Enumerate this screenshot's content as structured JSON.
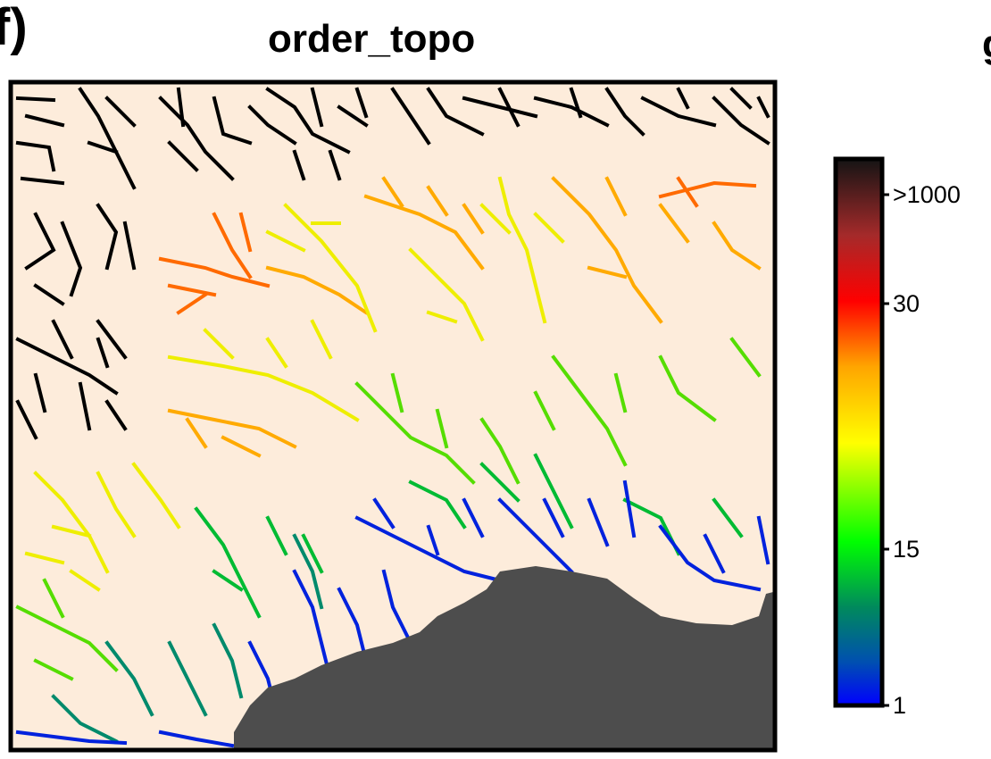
{
  "figure": {
    "panel_label": "f)",
    "next_panel_label": "g",
    "title": "order_topo"
  },
  "colorbar": {
    "tick_labels": [
      ">1000",
      "30",
      "15",
      "1"
    ],
    "colors": [
      "#0000ff",
      "#008a5c",
      "#00ff00",
      "#ffff00",
      "#ffa500",
      "#ff0000",
      "#a52a2a",
      "#1a1a1a"
    ]
  },
  "map_colors": {
    "background": "#fdecdb",
    "sea": "#4d4d4d",
    "black_channels": "#000000"
  }
}
